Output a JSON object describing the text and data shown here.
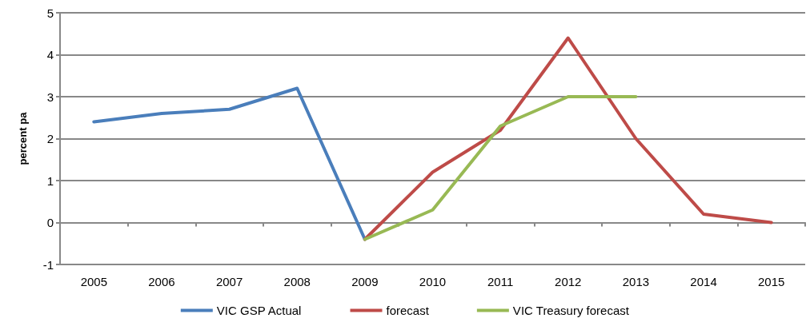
{
  "chart_data": {
    "type": "line",
    "ylabel": "percent pa",
    "categories": [
      "2005",
      "2006",
      "2007",
      "2008",
      "2009",
      "2010",
      "2011",
      "2012",
      "2013",
      "2014",
      "2015"
    ],
    "series": [
      {
        "name": "VIC GSP Actual",
        "color": "#4a7ebb",
        "values": [
          2.4,
          2.6,
          2.7,
          3.2,
          -0.4,
          null,
          null,
          null,
          null,
          null,
          null
        ]
      },
      {
        "name": "forecast",
        "color": "#be4b48",
        "values": [
          null,
          null,
          null,
          null,
          -0.4,
          1.2,
          2.2,
          4.4,
          2.0,
          0.2,
          0.0
        ]
      },
      {
        "name": "VIC Treasury forecast",
        "color": "#98b954",
        "values": [
          null,
          null,
          null,
          null,
          -0.4,
          0.3,
          2.3,
          3.0,
          3.0,
          null,
          null
        ]
      }
    ],
    "ylim": [
      -1,
      5
    ],
    "yticks": [
      -1,
      0,
      1,
      2,
      3,
      4,
      5
    ],
    "grid": "y",
    "legend": "bottom",
    "marker": "none",
    "line_style": "solid"
  }
}
